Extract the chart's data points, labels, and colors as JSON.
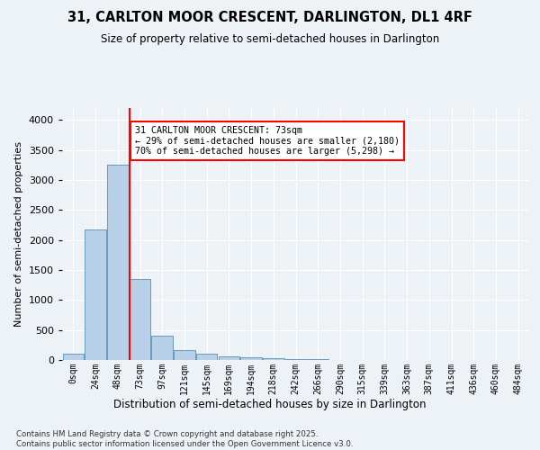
{
  "title1": "31, CARLTON MOOR CRESCENT, DARLINGTON, DL1 4RF",
  "title2": "Size of property relative to semi-detached houses in Darlington",
  "xlabel": "Distribution of semi-detached houses by size in Darlington",
  "ylabel": "Number of semi-detached properties",
  "bin_labels": [
    "0sqm",
    "24sqm",
    "48sqm",
    "73sqm",
    "97sqm",
    "121sqm",
    "145sqm",
    "169sqm",
    "194sqm",
    "218sqm",
    "242sqm",
    "266sqm",
    "290sqm",
    "315sqm",
    "339sqm",
    "363sqm",
    "387sqm",
    "411sqm",
    "436sqm",
    "460sqm",
    "484sqm"
  ],
  "bar_heights": [
    100,
    2180,
    3250,
    1350,
    400,
    170,
    110,
    60,
    40,
    25,
    15,
    8,
    4,
    2,
    1,
    1,
    0,
    0,
    0,
    0,
    0
  ],
  "bar_color": "#b8d0e8",
  "bar_edge_color": "#6699bb",
  "red_line_x": 2.525,
  "annotation_text_line1": "31 CARLTON MOOR CRESCENT: 73sqm",
  "annotation_text_line2": "← 29% of semi-detached houses are smaller (2,180)",
  "annotation_text_line3": "70% of semi-detached houses are larger (5,298) →",
  "ylim": [
    0,
    4200
  ],
  "yticks": [
    0,
    500,
    1000,
    1500,
    2000,
    2500,
    3000,
    3500,
    4000
  ],
  "footer_line1": "Contains HM Land Registry data © Crown copyright and database right 2025.",
  "footer_line2": "Contains public sector information licensed under the Open Government Licence v3.0.",
  "bg_color": "#edf2f7",
  "plot_bg_color": "#edf2f7"
}
